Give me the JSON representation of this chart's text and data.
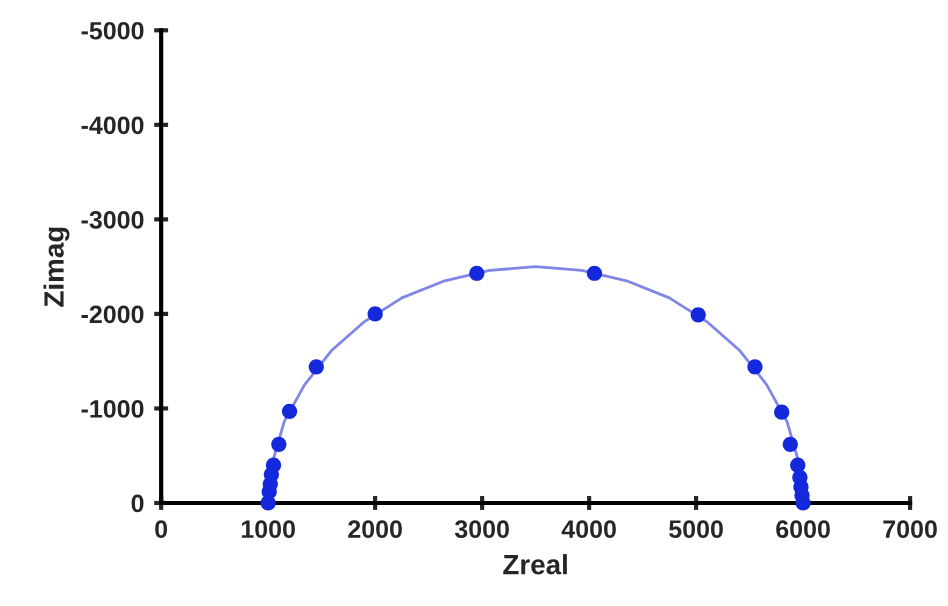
{
  "chart_data": {
    "type": "scatter",
    "xlabel": "Zreal",
    "ylabel": "Zimag",
    "xlim": [
      0,
      7000
    ],
    "xticks": [
      0,
      1000,
      2000,
      3000,
      4000,
      5000,
      6000,
      7000
    ],
    "ylim": [
      0,
      -5000
    ],
    "yticks": [
      0,
      -1000,
      -2000,
      -3000,
      -4000,
      -5000
    ],
    "grid": false,
    "legend": false,
    "series": [
      {
        "type": "line",
        "color": "#7f86e6",
        "marker": "none",
        "line_style": "solid",
        "x": [
          1000,
          1040,
          1150,
          1340,
          1590,
          1890,
          2250,
          2650,
          3070,
          3500,
          3930,
          4350,
          4750,
          5110,
          5410,
          5660,
          5850,
          5960,
          6000
        ],
        "values": [
          0,
          -430,
          -860,
          -1250,
          -1610,
          -1910,
          -2170,
          -2350,
          -2460,
          -2500,
          -2460,
          -2350,
          -2170,
          -1910,
          -1610,
          -1250,
          -860,
          -430,
          0
        ]
      },
      {
        "color": "#1428dc",
        "marker": "circle",
        "x": [
          1000,
          1010,
          1020,
          1030,
          1050,
          1100,
          1200,
          1450,
          2000,
          2950,
          4050,
          5020,
          5550,
          5800,
          5880,
          5950,
          5970,
          5980,
          5990,
          6000
        ],
        "values": [
          0,
          -120,
          -200,
          -300,
          -400,
          -620,
          -970,
          -1440,
          -2000,
          -2430,
          -2430,
          -1990,
          -1440,
          -960,
          -620,
          -400,
          -270,
          -170,
          -80,
          0
        ]
      }
    ]
  }
}
